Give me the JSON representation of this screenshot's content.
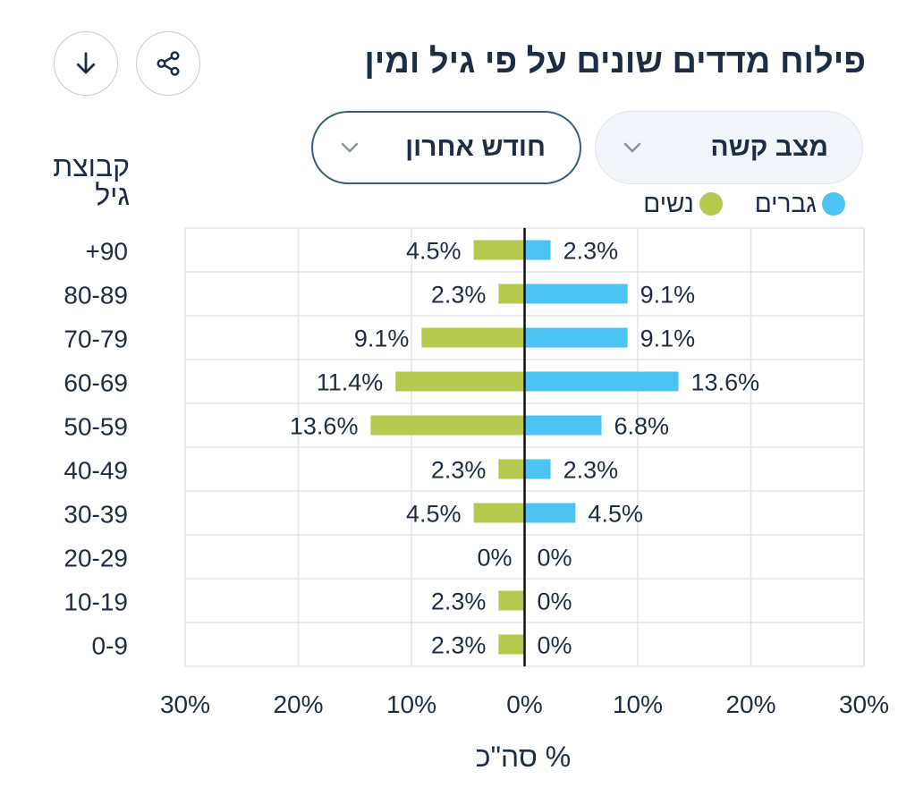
{
  "title": "פילוח מדדים שונים על פי גיל ומין",
  "buttons": {
    "download_icon": "arrow-down-icon",
    "share_icon": "share-icon"
  },
  "filters": {
    "status": {
      "value": "מצב קשה",
      "icon": "chevron-down-icon"
    },
    "period": {
      "value": "חודש אחרון",
      "icon": "chevron-down-icon"
    }
  },
  "colors": {
    "men": "#4cc3f2",
    "women": "#b4c94d"
  },
  "chart_data": {
    "type": "bar",
    "orientation": "horizontal",
    "layout": "population-pyramid",
    "ylabel": "קבוצת גיל",
    "xlabel": "% סה\"כ",
    "categories": [
      "+90",
      "80-89",
      "70-79",
      "60-69",
      "50-59",
      "40-49",
      "30-39",
      "20-29",
      "10-19",
      "0-9"
    ],
    "series": [
      {
        "name": "גברים",
        "side": "right",
        "values": [
          2.3,
          9.1,
          9.1,
          13.6,
          6.8,
          2.3,
          4.5,
          0,
          0,
          0
        ]
      },
      {
        "name": "נשים",
        "side": "left",
        "values": [
          4.5,
          2.3,
          9.1,
          11.4,
          13.6,
          2.3,
          4.5,
          0,
          2.3,
          2.3
        ]
      }
    ],
    "xlim": [
      -30,
      30
    ],
    "xticks": [
      {
        "value": -30,
        "label": "30%"
      },
      {
        "value": -20,
        "label": "20%"
      },
      {
        "value": -10,
        "label": "10%"
      },
      {
        "value": 0,
        "label": "0%"
      },
      {
        "value": 10,
        "label": "10%"
      },
      {
        "value": 20,
        "label": "20%"
      },
      {
        "value": 30,
        "label": "30%"
      }
    ],
    "value_suffix": "%",
    "grid": true,
    "legend": "top-right"
  }
}
